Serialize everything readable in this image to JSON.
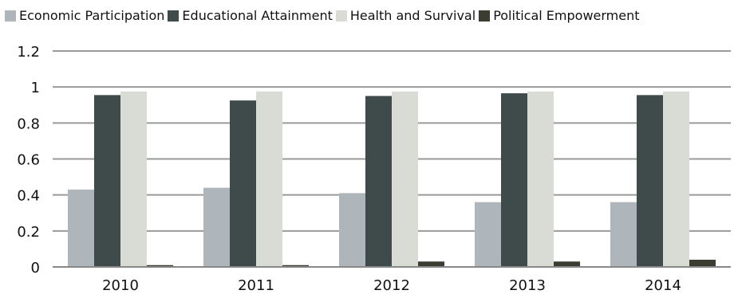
{
  "chart_data": {
    "type": "bar",
    "categories": [
      "2010",
      "2011",
      "2012",
      "2013",
      "2014"
    ],
    "series": [
      {
        "name": "Economic Participation",
        "values": [
          0.43,
          0.44,
          0.41,
          0.36,
          0.36
        ],
        "color": "#aeb6bb"
      },
      {
        "name": "Educational Attainment",
        "values": [
          0.955,
          0.925,
          0.95,
          0.965,
          0.955
        ],
        "color": "#3f4a4a"
      },
      {
        "name": "Health and Survival",
        "values": [
          0.975,
          0.975,
          0.975,
          0.975,
          0.975
        ],
        "color": "#d8dcd4"
      },
      {
        "name": "Political Empowerment",
        "values": [
          0.01,
          0.01,
          0.03,
          0.03,
          0.04
        ],
        "color": "#3b3d33"
      }
    ],
    "ylim": [
      0,
      1.2
    ],
    "yticks": [
      "0",
      "0.2",
      "0.4",
      "0.6",
      "0.8",
      "1",
      "1.2"
    ],
    "grid": true,
    "legend_position": "top"
  }
}
